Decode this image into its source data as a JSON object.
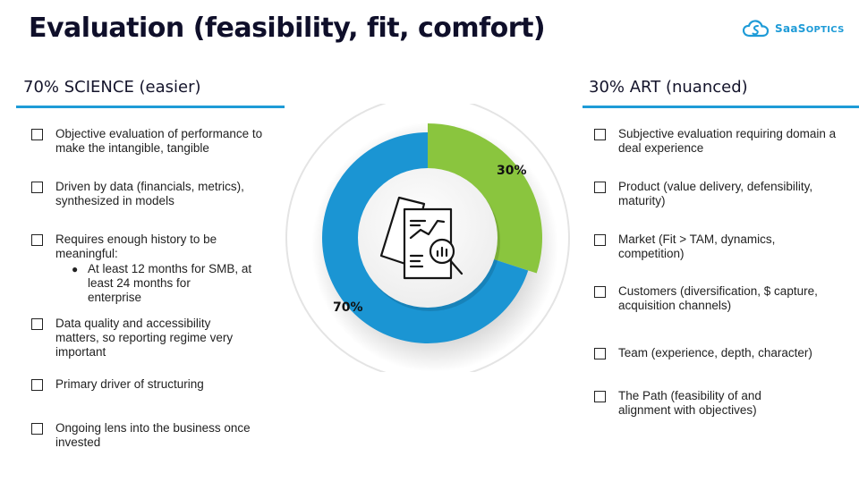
{
  "title": "Evaluation (feasibility, fit, comfort)",
  "logo": {
    "text_main": "SaaS",
    "text_small": "OPTICS",
    "icon": "cloud-icon"
  },
  "left": {
    "heading": "70% SCIENCE (easier)",
    "items": [
      {
        "lines": [
          "Objective evaluation of performance to",
          "make the intangible, tangible"
        ]
      },
      {
        "lines": [
          "Driven by data (financials, metrics),",
          "synthesized in models"
        ]
      },
      {
        "lines": [
          "Requires enough history to be",
          "meaningful:"
        ],
        "sub": [
          "At least 12 months for SMB, at",
          "least 24 months for",
          "enterprise"
        ]
      },
      {
        "lines": [
          "Data quality and accessibility",
          "matters, so reporting regime very",
          "important"
        ]
      },
      {
        "lines": [
          "Primary driver of structuring"
        ]
      },
      {
        "lines": [
          "Ongoing lens into the business once",
          "invested"
        ]
      }
    ]
  },
  "right": {
    "heading": "30% ART (nuanced)",
    "items": [
      {
        "lines": [
          "Subjective evaluation requiring domain a",
          "deal experience"
        ]
      },
      {
        "lines": [
          "Product (value delivery, defensibility,",
          "maturity)"
        ]
      },
      {
        "lines": [
          "Market (Fit > TAM, dynamics,",
          "competition)"
        ]
      },
      {
        "lines": [
          "Customers (diversification, $ capture,",
          "acquisition channels)"
        ]
      },
      {
        "lines": [
          "Team (experience, depth, character)"
        ]
      },
      {
        "lines": [
          "The Path (feasibility of and",
          "alignment with objectives)"
        ]
      }
    ]
  },
  "chart_data": {
    "type": "pie",
    "categories": [
      "Science",
      "Art"
    ],
    "values": [
      70,
      30
    ],
    "labels": [
      "70%",
      "30%"
    ],
    "colors": [
      "#1b95d3",
      "#8ac53e"
    ],
    "center_icon": "report-analysis-icon"
  }
}
